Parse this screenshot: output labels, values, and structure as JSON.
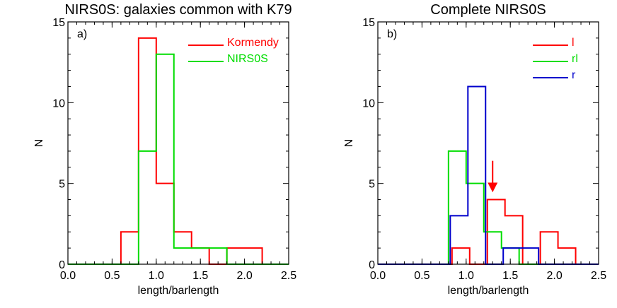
{
  "chart_data": [
    {
      "type": "histogram",
      "title": "NIRS0S: galaxies common with K79",
      "panel_label": "a)",
      "xlabel": "length/barlength",
      "ylabel": "N",
      "xlim": [
        0.0,
        2.5
      ],
      "ylim": [
        0,
        15
      ],
      "xticks": [
        "0.0",
        "0.5",
        "1.0",
        "1.5",
        "2.0",
        "2.5"
      ],
      "yticks": [
        "0",
        "5",
        "10",
        "15"
      ],
      "bin_edges": [
        0.0,
        0.2,
        0.4,
        0.6,
        0.8,
        1.0,
        1.2,
        1.4,
        1.6,
        1.8,
        2.0,
        2.2,
        2.4
      ],
      "legend_position": "top-right",
      "series": [
        {
          "name": "Kormendy",
          "color": "#ff0000",
          "offset": 0.0,
          "values": [
            0,
            0,
            0,
            2,
            14,
            5,
            2,
            1,
            0,
            1,
            1,
            0
          ]
        },
        {
          "name": "NIRS0S",
          "color": "#00dd00",
          "offset": 0.0,
          "values": [
            0,
            0,
            0,
            0,
            7,
            13,
            1,
            1,
            1,
            0,
            0,
            0
          ]
        }
      ]
    },
    {
      "type": "histogram",
      "title": "Complete NIRS0S",
      "panel_label": "b)",
      "xlabel": "length/barlength",
      "ylabel": "N",
      "xlim": [
        0.0,
        2.5
      ],
      "ylim": [
        0,
        15
      ],
      "xticks": [
        "0.0",
        "0.5",
        "1.0",
        "1.5",
        "2.0",
        "2.5"
      ],
      "yticks": [
        "0",
        "5",
        "10",
        "15"
      ],
      "bin_edges": [
        0.0,
        0.2,
        0.4,
        0.6,
        0.8,
        1.0,
        1.2,
        1.4,
        1.6,
        1.8,
        2.0,
        2.2,
        2.4
      ],
      "legend_position": "top-right",
      "arrow": {
        "x": 1.3,
        "y_from": 5.8,
        "y_to": 4.5,
        "color": "#ff0000"
      },
      "series": [
        {
          "name": "l",
          "color": "#ff0000",
          "offset": 0.04,
          "values": [
            0,
            0,
            0,
            0,
            1,
            0,
            4,
            3,
            0,
            2,
            1,
            0
          ]
        },
        {
          "name": "rl",
          "color": "#00dd00",
          "offset": 0.0,
          "values": [
            0,
            0,
            0,
            0,
            7,
            5,
            2,
            1,
            0,
            0,
            0,
            0
          ]
        },
        {
          "name": "r",
          "color": "#0000cc",
          "offset": 0.02,
          "values": [
            0,
            0,
            0,
            0,
            3,
            11,
            0,
            1,
            1,
            0,
            0,
            0
          ]
        }
      ]
    }
  ]
}
